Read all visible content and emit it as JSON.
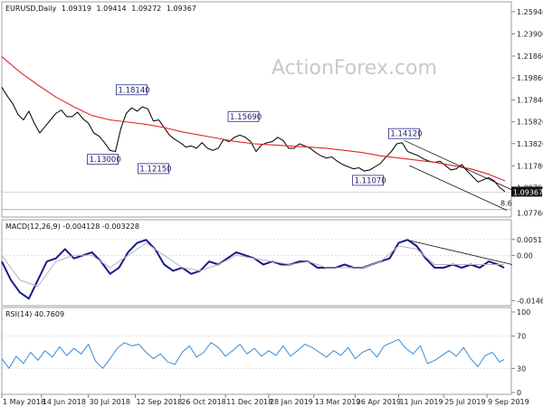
{
  "chart_data": [
    {
      "id": "price",
      "type": "line",
      "title": "EURUSD,Daily",
      "ohlc": [
        "1.09319",
        "1.09414",
        "1.09272",
        "1.09367"
      ],
      "watermark": "ActionForex.com",
      "ylim": [
        1.0724,
        1.2668
      ],
      "y_ticks": [
        1.2594,
        1.239,
        1.2186,
        1.1986,
        1.1784,
        1.1582,
        1.1382,
        1.1178,
        1.0976
      ],
      "y_tick_labels": [
        "1.25940",
        "1.23900",
        "1.21860",
        "1.19860",
        "1.17840",
        "1.15820",
        "1.13820",
        "1.11780",
        "1.09760"
      ],
      "last_price": 1.09367,
      "last_price_label": "1.09367",
      "level_label": "1.07760",
      "level_value": 1.0776,
      "fib_label": "8.6",
      "series": [
        {
          "name": "close",
          "x": [
            0,
            6,
            12,
            18,
            24,
            30,
            36,
            42,
            48,
            54,
            60,
            66,
            72,
            78,
            84,
            90,
            96,
            102,
            108,
            114,
            120,
            126,
            132,
            138,
            144,
            150,
            156,
            162,
            168,
            174,
            180,
            186,
            192,
            198,
            204,
            210,
            216,
            222,
            228,
            234,
            240,
            246,
            252,
            258,
            264,
            270,
            276,
            282,
            288,
            294,
            300,
            306,
            312,
            318,
            324,
            330,
            336,
            342,
            348,
            354,
            360,
            366,
            372,
            378,
            384,
            390,
            396,
            402,
            408,
            414,
            420,
            426,
            432,
            438,
            444,
            450,
            456,
            462,
            468,
            474,
            480,
            486,
            492,
            498,
            504,
            510,
            516,
            522,
            528,
            534,
            540,
            546,
            552,
            558
          ],
          "values": [
            1.19,
            1.182,
            1.175,
            1.165,
            1.16,
            1.168,
            1.157,
            1.148,
            1.154,
            1.16,
            1.166,
            1.169,
            1.163,
            1.163,
            1.167,
            1.161,
            1.157,
            1.148,
            1.145,
            1.139,
            1.132,
            1.131,
            1.152,
            1.166,
            1.171,
            1.168,
            1.172,
            1.17,
            1.159,
            1.16,
            1.153,
            1.146,
            1.142,
            1.139,
            1.135,
            1.136,
            1.134,
            1.139,
            1.134,
            1.132,
            1.134,
            1.142,
            1.14,
            1.144,
            1.146,
            1.144,
            1.14,
            1.131,
            1.137,
            1.139,
            1.14,
            1.144,
            1.141,
            1.134,
            1.134,
            1.138,
            1.136,
            1.134,
            1.13,
            1.127,
            1.125,
            1.126,
            1.122,
            1.119,
            1.117,
            1.115,
            1.116,
            1.113,
            1.114,
            1.117,
            1.12,
            1.126,
            1.131,
            1.138,
            1.139,
            1.131,
            1.129,
            1.127,
            1.124,
            1.122,
            1.121,
            1.122,
            1.118,
            1.114,
            1.115,
            1.119,
            1.113,
            1.108,
            1.103,
            1.105,
            1.107,
            1.104,
            1.098,
            1.094
          ]
        },
        {
          "name": "moving-average",
          "x": [
            0,
            20,
            40,
            60,
            80,
            100,
            120,
            140,
            160,
            180,
            200,
            220,
            240,
            260,
            280,
            300,
            320,
            340,
            360,
            380,
            400,
            420,
            440,
            460,
            480,
            500,
            520,
            540,
            558
          ],
          "values": [
            1.218,
            1.204,
            1.192,
            1.181,
            1.172,
            1.164,
            1.16,
            1.158,
            1.156,
            1.153,
            1.149,
            1.146,
            1.143,
            1.14,
            1.138,
            1.137,
            1.136,
            1.135,
            1.134,
            1.132,
            1.13,
            1.127,
            1.125,
            1.123,
            1.121,
            1.118,
            1.115,
            1.11,
            1.104
          ]
        }
      ],
      "callouts": [
        {
          "label": "1.18140",
          "x": 144,
          "y": 1.1814
        },
        {
          "label": "1.13000",
          "x": 112,
          "y": 1.13
        },
        {
          "label": "1.12150",
          "x": 168,
          "y": 1.1215
        },
        {
          "label": "1.15690",
          "x": 268,
          "y": 1.1569
        },
        {
          "label": "1.14120",
          "x": 446,
          "y": 1.1412
        },
        {
          "label": "1.11070",
          "x": 406,
          "y": 1.1107
        }
      ],
      "channel": [
        {
          "x": [
            446,
            565
          ],
          "y": [
            1.1412,
            1.096
          ]
        },
        {
          "x": [
            452,
            560
          ],
          "y": [
            1.118,
            1.077
          ]
        }
      ]
    },
    {
      "id": "macd",
      "type": "line",
      "title": "MACD(12,26,9) -0.004128 -0.003228",
      "ylim": [
        -0.016,
        0.0071
      ],
      "y_ticks": [
        0.005114,
        0.0,
        -0.014647
      ],
      "y_tick_labels": [
        "0.005114",
        "0.00",
        "-0.014647"
      ],
      "series": [
        {
          "name": "macd",
          "x": [
            0,
            10,
            20,
            30,
            40,
            50,
            60,
            70,
            80,
            90,
            100,
            110,
            120,
            130,
            140,
            150,
            160,
            170,
            180,
            190,
            200,
            210,
            220,
            230,
            240,
            250,
            260,
            270,
            280,
            290,
            300,
            310,
            320,
            330,
            340,
            350,
            360,
            370,
            380,
            390,
            400,
            410,
            420,
            430,
            440,
            450,
            460,
            470,
            480,
            490,
            500,
            510,
            520,
            530,
            540,
            550,
            557
          ],
          "values": [
            -0.002,
            -0.008,
            -0.012,
            -0.014,
            -0.008,
            -0.002,
            -0.001,
            0.002,
            -0.001,
            0.0,
            0.001,
            -0.002,
            -0.006,
            -0.004,
            0.001,
            0.004,
            0.005,
            0.002,
            -0.003,
            -0.005,
            -0.004,
            -0.006,
            -0.005,
            -0.002,
            -0.003,
            -0.001,
            0.001,
            0.0,
            -0.001,
            -0.003,
            -0.002,
            -0.003,
            -0.003,
            -0.002,
            -0.002,
            -0.004,
            -0.004,
            -0.004,
            -0.003,
            -0.004,
            -0.004,
            -0.003,
            -0.002,
            -0.001,
            0.004,
            0.005,
            0.003,
            -0.001,
            -0.004,
            -0.004,
            -0.003,
            -0.004,
            -0.003,
            -0.004,
            -0.002,
            -0.003,
            -0.004
          ]
        },
        {
          "name": "signal",
          "x": [
            0,
            20,
            40,
            60,
            80,
            100,
            120,
            140,
            160,
            180,
            200,
            220,
            240,
            260,
            280,
            300,
            320,
            340,
            360,
            380,
            400,
            420,
            440,
            460,
            480,
            500,
            520,
            540,
            557
          ],
          "values": [
            0.0,
            -0.008,
            -0.01,
            -0.002,
            0.0,
            0.0,
            -0.004,
            0.0,
            0.004,
            0.0,
            -0.004,
            -0.005,
            -0.003,
            0.0,
            -0.001,
            -0.002,
            -0.003,
            -0.002,
            -0.004,
            -0.004,
            -0.004,
            -0.002,
            0.003,
            0.002,
            -0.003,
            -0.003,
            -0.003,
            -0.003,
            -0.003
          ]
        }
      ],
      "trendline": {
        "x": [
          452,
          566
        ],
        "y": [
          0.0048,
          -0.003
        ]
      }
    },
    {
      "id": "rsi",
      "type": "line",
      "title": "RSI(14) 40.7609",
      "ylim": [
        0,
        100
      ],
      "y_ticks": [
        100,
        70,
        30,
        0
      ],
      "y_tick_labels": [
        "100",
        "70",
        "30",
        "0"
      ],
      "series": [
        {
          "name": "rsi",
          "x": [
            0,
            8,
            16,
            24,
            32,
            40,
            48,
            56,
            64,
            72,
            80,
            88,
            96,
            104,
            112,
            120,
            128,
            136,
            144,
            152,
            160,
            168,
            176,
            184,
            192,
            200,
            208,
            216,
            224,
            232,
            240,
            248,
            256,
            264,
            272,
            280,
            288,
            296,
            304,
            312,
            320,
            328,
            336,
            344,
            352,
            360,
            368,
            376,
            384,
            392,
            400,
            408,
            416,
            424,
            432,
            440,
            448,
            456,
            464,
            472,
            480,
            488,
            496,
            504,
            512,
            520,
            528,
            536,
            544,
            552,
            557
          ],
          "values": [
            42,
            30,
            45,
            36,
            50,
            40,
            52,
            44,
            57,
            46,
            55,
            48,
            60,
            39,
            30,
            42,
            55,
            62,
            58,
            60,
            50,
            42,
            48,
            38,
            35,
            50,
            58,
            44,
            50,
            62,
            56,
            45,
            52,
            60,
            48,
            55,
            45,
            52,
            46,
            58,
            45,
            52,
            60,
            56,
            50,
            44,
            52,
            46,
            56,
            42,
            50,
            54,
            44,
            58,
            62,
            66,
            55,
            48,
            58,
            36,
            40,
            46,
            52,
            45,
            56,
            42,
            32,
            46,
            50,
            38,
            41
          ]
        }
      ]
    }
  ],
  "x_axis": {
    "ticks": [
      0,
      44,
      96,
      148,
      198,
      248,
      296,
      346,
      392,
      440,
      490,
      538
    ],
    "labels": [
      "1 May 2018",
      "14 Jun 2018",
      "30 Jul 2018",
      "12 Sep 2018",
      "26 Oct 2018",
      "11 Dec 2018",
      "28 Jan 2019",
      "13 Mar 2019",
      "26 Apr 2019",
      "11 Jun 2019",
      "25 Jul 2019",
      "9 Sep 2019"
    ]
  },
  "colors": {
    "price_line": "#111111",
    "moving_average": "#e0262b",
    "channel": "#111111",
    "macd": "#1a1a8c",
    "signal": "#b5b5b5",
    "rsi": "#3a8bd6",
    "grid_dashed": "#cfcfcf",
    "last_price_box": "#111111"
  }
}
